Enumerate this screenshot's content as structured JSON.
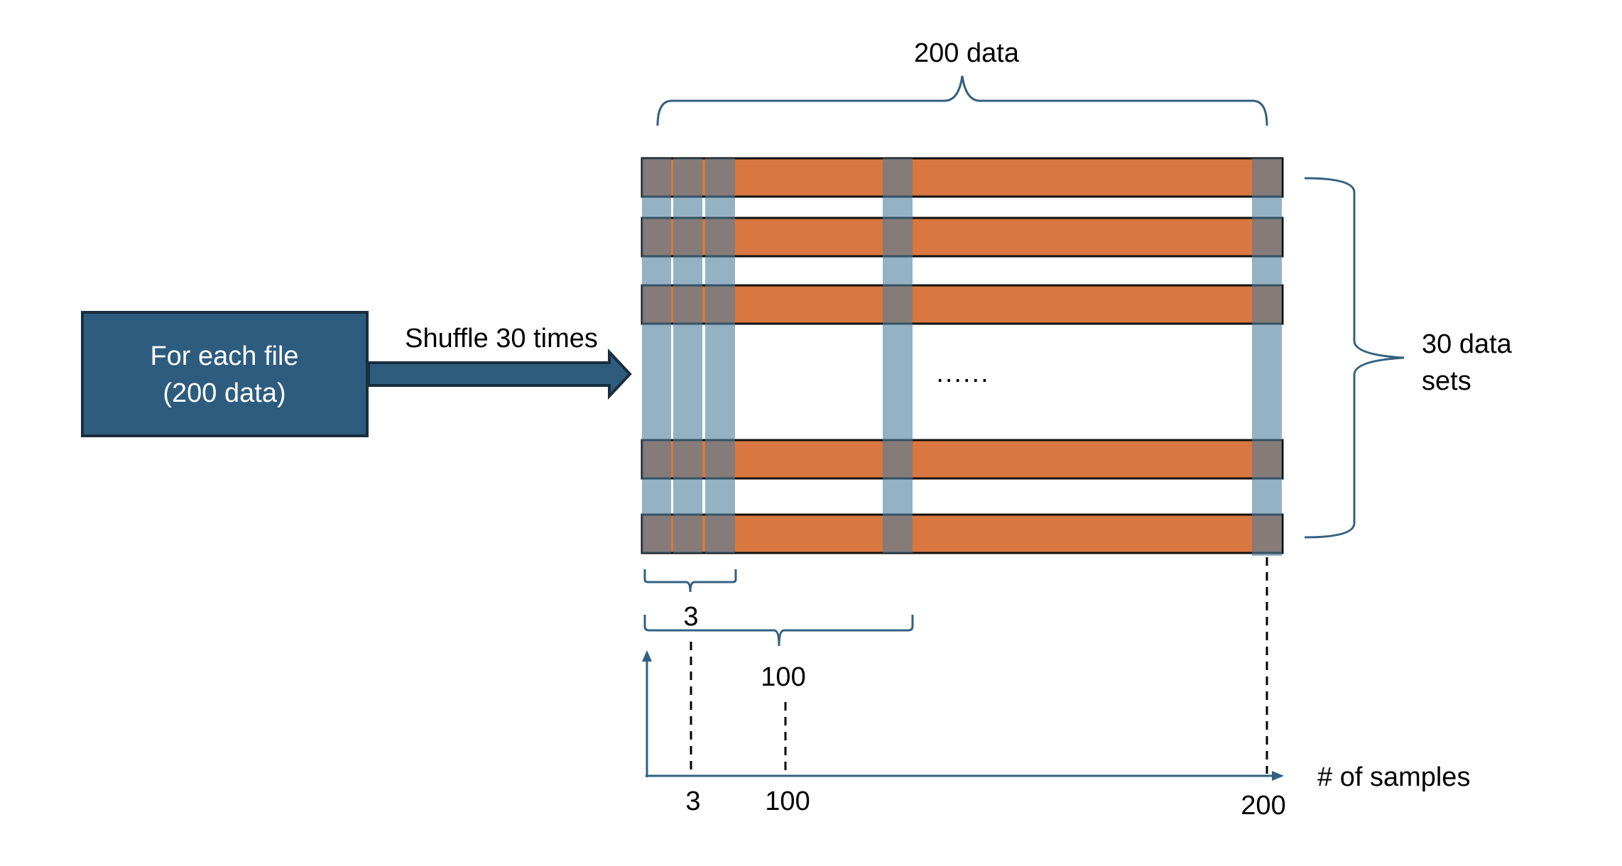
{
  "source_box": {
    "line1": "For each file",
    "line2": "(200 data)"
  },
  "arrow_label": "Shuffle 30 times",
  "top_brace_label": "200 data",
  "right_brace_label": {
    "line1": "30 data",
    "line2": "sets"
  },
  "ellipsis": "......",
  "bottom_braces": {
    "small_label": "3",
    "large_label": "100"
  },
  "axis": {
    "x_label": "# of samples",
    "ticks": [
      "3",
      "100",
      "200"
    ]
  },
  "data_rows": 5,
  "colors": {
    "box_fill": "#2e5c7e",
    "box_border": "#1a2e40",
    "row_fill": "#d8773f",
    "row_border": "#111111",
    "overlap_fill": "#84695b",
    "column_fill": "#95b0c2",
    "brace_stroke": "#336080",
    "axis_stroke": "#336080"
  }
}
